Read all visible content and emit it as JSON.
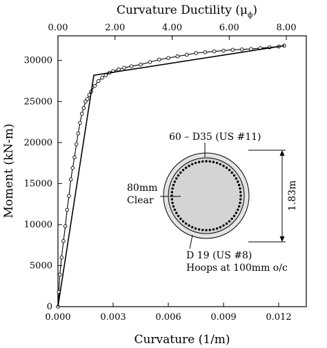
{
  "chart_data": {
    "type": "line",
    "xlabel": "Curvature (1/m)",
    "ylabel": "Moment (kN-m)",
    "x2label": "Curvature Ductility (μ",
    "x2label_sub": "ϕ",
    "x2label_close": ")",
    "xlim": [
      0,
      0.0135
    ],
    "ylim": [
      0,
      33000
    ],
    "x2lim": [
      0,
      8.7
    ],
    "x_ticks": [
      "0.000",
      "0.003",
      "0.006",
      "0.009",
      "0.012"
    ],
    "x_tick_values": [
      0,
      0.003,
      0.006,
      0.009,
      0.012
    ],
    "y_ticks": [
      "0",
      "5000",
      "10000",
      "15000",
      "20000",
      "25000",
      "30000"
    ],
    "y_tick_values": [
      0,
      5000,
      10000,
      15000,
      20000,
      25000,
      30000
    ],
    "x2_ticks": [
      "0.00",
      "2.00",
      "4.00",
      "6.00",
      "8.00"
    ],
    "x2_tick_values": [
      0,
      2,
      4,
      6,
      8
    ],
    "grid": false,
    "series": [
      {
        "style": "line-with-circle-markers",
        "x": [
          0,
          5e-05,
          0.0001,
          0.0002,
          0.0003,
          0.0004,
          0.0005,
          0.0006,
          0.0007,
          0.0008,
          0.0009,
          0.001,
          0.0011,
          0.0012,
          0.0013,
          0.0014,
          0.0015,
          0.0016,
          0.0017,
          0.0018,
          0.002,
          0.0022,
          0.0024,
          0.0026,
          0.0028,
          0.003,
          0.0033,
          0.0036,
          0.004,
          0.0045,
          0.005,
          0.0055,
          0.006,
          0.0065,
          0.007,
          0.0075,
          0.008,
          0.0085,
          0.009,
          0.0095,
          0.01,
          0.0105,
          0.011,
          0.0115,
          0.012,
          0.0123
        ],
        "y": [
          0,
          1800,
          3900,
          6000,
          8000,
          9800,
          11800,
          13500,
          15500,
          16900,
          18200,
          19800,
          21100,
          22400,
          23500,
          24200,
          25000,
          25300,
          25800,
          26200,
          26900,
          27500,
          27900,
          28200,
          28500,
          28700,
          28900,
          29100,
          29300,
          29500,
          29800,
          30100,
          30300,
          30500,
          30700,
          30900,
          31000,
          31100,
          31200,
          31300,
          31350,
          31400,
          31500,
          31600,
          31700,
          31800
        ]
      },
      {
        "style": "bilinear-idealization",
        "x": [
          0,
          0.00195,
          0.0123
        ],
        "y": [
          0,
          28200,
          31800
        ]
      }
    ]
  },
  "inset": {
    "bars_label": "60 – D35 (US #11)",
    "diameter_label": "1.83m",
    "cover_label_1": "80mm",
    "cover_label_2": "Clear",
    "hoop_label_1": "D 19 (US #8)",
    "hoop_label_2": "Hoops at 100mm o/c",
    "bar_count": 60
  }
}
